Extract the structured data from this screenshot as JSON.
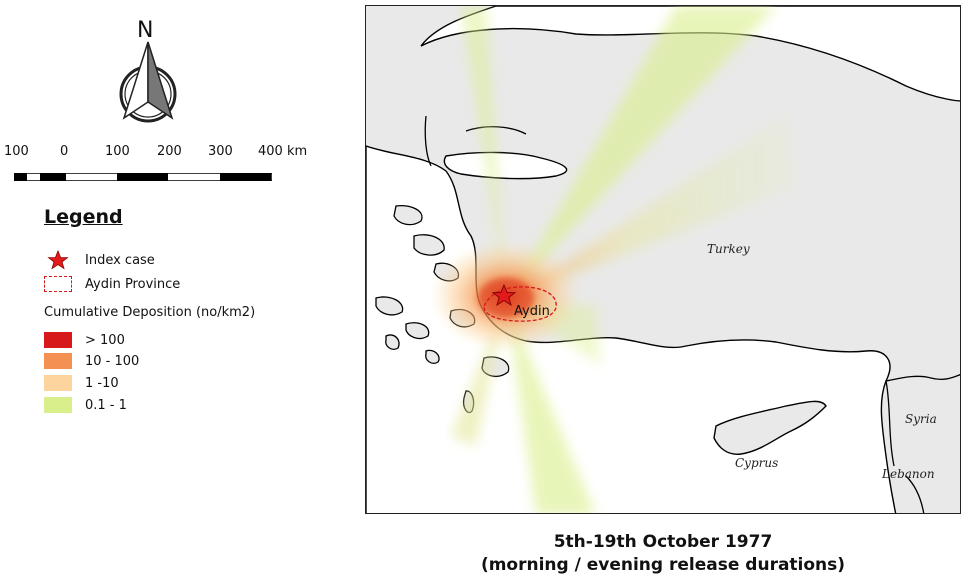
{
  "north_arrow": {
    "label": "N"
  },
  "scale_bar": {
    "unit": "km",
    "ticks": [
      "100",
      "0",
      "100",
      "200",
      "300",
      "400 km"
    ]
  },
  "legend": {
    "title": "Legend",
    "index_case_label": "Index case",
    "province_label": "Aydin Province",
    "deposition_title": "Cumulative Deposition (no/km2)",
    "classes": [
      {
        "label": "> 100",
        "color": "#d7191c"
      },
      {
        "label": "10 - 100",
        "color": "#f59053"
      },
      {
        "label": "1 -10",
        "color": "#fdd49e"
      },
      {
        "label": "0.1 - 1",
        "color": "#d9ef8b"
      }
    ]
  },
  "map": {
    "labels": {
      "turkey": "Turkey",
      "aydin": "Aydin",
      "cyprus": "Cyprus",
      "syria": "Syria",
      "lebanon": "Lebanon"
    },
    "colors": {
      "land": "#e9e9e9",
      "sea": "#ffffff",
      "border": "#000000"
    }
  },
  "caption": {
    "line1": "5th-19th October 1977",
    "line2": "(morning / evening release durations)"
  }
}
